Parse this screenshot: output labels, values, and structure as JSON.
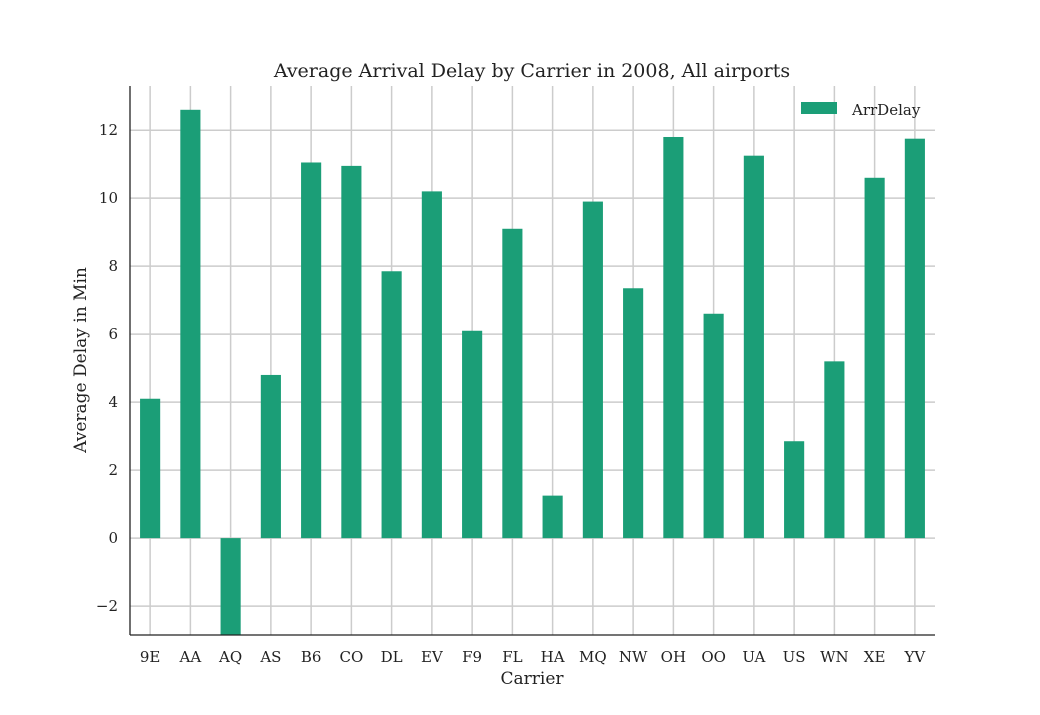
{
  "chart_data": {
    "type": "bar",
    "title": "Average Arrival Delay by Carrier in 2008, All  airports",
    "xlabel": "Carrier",
    "ylabel": "Average Delay in Min",
    "categories": [
      "9E",
      "AA",
      "AQ",
      "AS",
      "B6",
      "CO",
      "DL",
      "EV",
      "F9",
      "FL",
      "HA",
      "MQ",
      "NW",
      "OH",
      "OO",
      "UA",
      "US",
      "WN",
      "XE",
      "YV"
    ],
    "series": [
      {
        "name": "ArrDelay",
        "color": "#1b9e77",
        "values": [
          4.1,
          12.6,
          -3.0,
          4.8,
          11.05,
          10.95,
          7.85,
          10.2,
          6.1,
          9.1,
          1.25,
          9.9,
          7.35,
          11.8,
          6.6,
          11.25,
          2.85,
          5.2,
          10.6,
          11.75
        ]
      }
    ],
    "ylim": [
      -2.85,
      13.3
    ],
    "yticks": [
      -2,
      0,
      2,
      4,
      6,
      8,
      10,
      12
    ],
    "ytick_labels": [
      "−2",
      "0",
      "2",
      "4",
      "6",
      "8",
      "10",
      "12"
    ],
    "grid": true,
    "legend_position": "top-right"
  }
}
